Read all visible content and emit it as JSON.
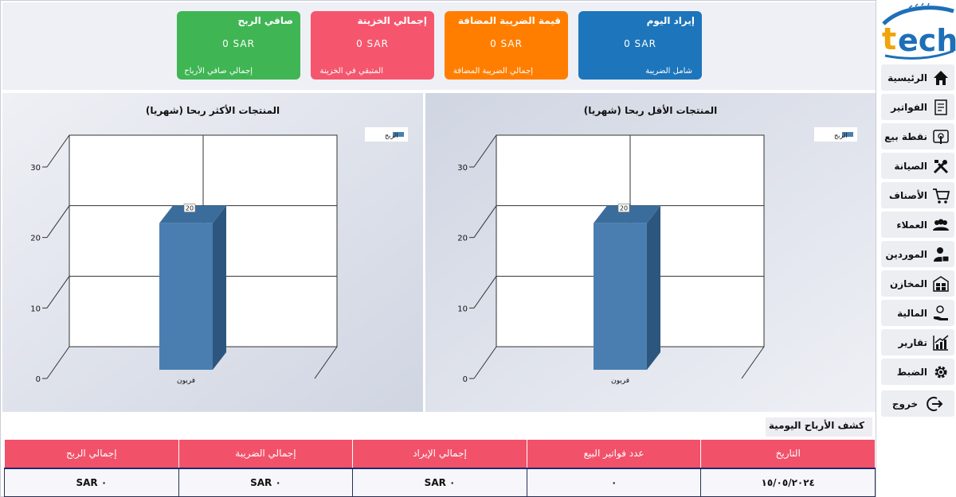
{
  "cards": [
    {
      "title": "إيراد اليوم",
      "value": "0  SAR",
      "sub": "شامل الضريبة",
      "color": "#1d75bb"
    },
    {
      "title": "قيمة الضريبة المضافة",
      "value": "0  SAR",
      "sub": "إجمالي الضريبة المضافة",
      "color": "#ff7e00"
    },
    {
      "title": "إجمالي الخزينة",
      "value": "0  SAR",
      "sub": "المتبقي في الخزينة",
      "color": "#f5566d"
    },
    {
      "title": "صافي الربح",
      "value": "0  SAR",
      "sub": "إجمالي صافي الأرباح",
      "color": "#3fb553"
    }
  ],
  "chart_data": [
    {
      "type": "bar",
      "title": "المنتجات الأكثر ربحا (شهريا)",
      "categories": [
        "فريون"
      ],
      "series": [
        {
          "name": "الربح",
          "values": [
            20
          ]
        }
      ],
      "data_labels": [
        "20"
      ],
      "ylim": [
        0,
        30
      ],
      "yticks": [
        "0",
        "10",
        "20",
        "30"
      ],
      "grid": true,
      "legend": "top-right",
      "color": "#4a7eb0"
    },
    {
      "type": "bar",
      "title": "المنتجات الأقل ربحا (شهريا)",
      "categories": [
        "فريون"
      ],
      "series": [
        {
          "name": "الربح",
          "values": [
            20
          ]
        }
      ],
      "data_labels": [
        "20"
      ],
      "ylim": [
        0,
        30
      ],
      "yticks": [
        "0",
        "10",
        "20",
        "30"
      ],
      "grid": true,
      "legend": "top-right",
      "color": "#4a7eb0"
    }
  ],
  "report": {
    "title": "كشف الأرباح اليومية",
    "headers": [
      "التاريخ",
      "عدد فواتير البيع",
      "إجمالي الإيراد",
      "إجمالي الضريبة",
      "إجمالي الربح"
    ],
    "rows": [
      [
        "١٥/٠٥/٢٠٢٤",
        "٠",
        "SAR ٠",
        "SAR ٠",
        "SAR ٠"
      ]
    ],
    "header_color": "#f2516a"
  },
  "sidebar": {
    "logo_text": "tech",
    "items": [
      {
        "label": "الرئيسية",
        "icon": "home-icon"
      },
      {
        "label": "الفواتير",
        "icon": "invoice-icon"
      },
      {
        "label": "نقطة بيع",
        "icon": "touch-pos-icon"
      },
      {
        "label": "الصيانة",
        "icon": "tools-icon"
      },
      {
        "label": "الأصناف",
        "icon": "cart-icon"
      },
      {
        "label": "العملاء",
        "icon": "users-icon"
      },
      {
        "label": "الموردين",
        "icon": "supplier-icon"
      },
      {
        "label": "المخازن",
        "icon": "warehouse-icon"
      },
      {
        "label": "المالية",
        "icon": "money-hand-icon"
      },
      {
        "label": "تقارير",
        "icon": "chart-up-icon"
      },
      {
        "label": "الضبط",
        "icon": "gear-icon"
      },
      {
        "label": "خروج",
        "icon": "logout-icon"
      }
    ]
  }
}
